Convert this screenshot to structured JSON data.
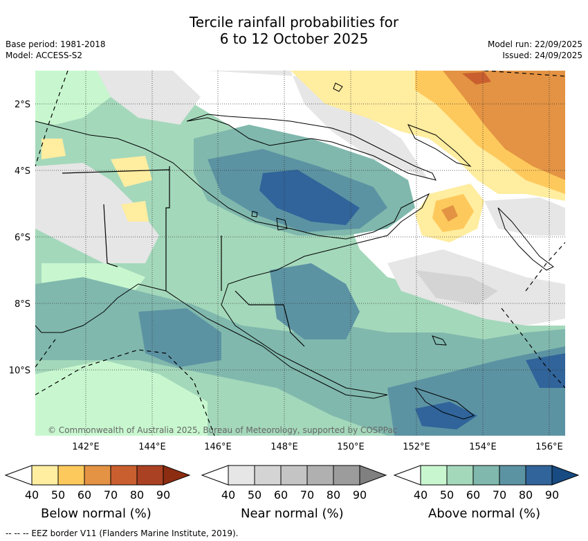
{
  "title": {
    "line1": "Tercile rainfall probabilities for",
    "line2": "6 to 12 October 2025"
  },
  "meta_left": {
    "base_period": "Base period: 1981-2018",
    "model": "Model: ACCESS-S2"
  },
  "meta_right": {
    "model_run": "Model run: 22/09/2025",
    "issued": "Issued: 24/09/2025"
  },
  "map": {
    "lat_labels": [
      "2°S",
      "4°S",
      "6°S",
      "8°S",
      "10°S"
    ],
    "lon_labels": [
      "142°E",
      "144°E",
      "146°E",
      "148°E",
      "150°E",
      "152°E",
      "154°E",
      "156°E"
    ],
    "attribution": "© Commonwealth of Australia 2025, Bureau of Meteorology, supported by COSPPac",
    "extent": {
      "lon_min": 140.0,
      "lon_max": 156.5,
      "lat_min": -12.0,
      "lat_max": -1.0
    }
  },
  "colorbars": [
    {
      "id": "below",
      "title": "Below normal (%)",
      "ticks": [
        "40",
        "50",
        "60",
        "70",
        "80",
        "90"
      ],
      "colors": [
        "#ffffff",
        "#ffeda0",
        "#fec95c",
        "#e39343",
        "#c95f2e",
        "#aa4122",
        "#8c2d12"
      ]
    },
    {
      "id": "near",
      "title": "Near normal (%)",
      "ticks": [
        "40",
        "50",
        "60",
        "70",
        "80",
        "90"
      ],
      "colors": [
        "#ffffff",
        "#e6e6e6",
        "#d4d4d4",
        "#c4c4c4",
        "#b0b0b0",
        "#9c9c9c",
        "#808080"
      ]
    },
    {
      "id": "above",
      "title": "Above normal (%)",
      "ticks": [
        "40",
        "50",
        "60",
        "70",
        "80",
        "90"
      ],
      "colors": [
        "#ffffff",
        "#c8f7cf",
        "#a4d8bb",
        "#80b8ad",
        "#5c93a3",
        "#30649a",
        "#174b82"
      ]
    }
  ],
  "footer": "--  --  -- EEZ border V11 (Flanders Marine Institute, 2019)."
}
